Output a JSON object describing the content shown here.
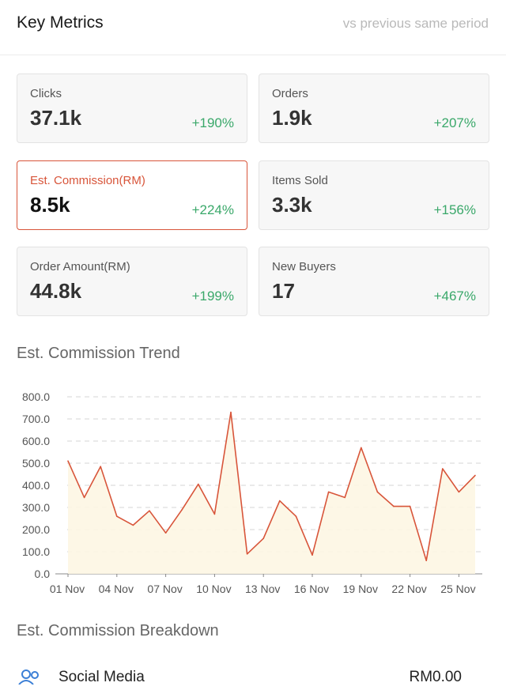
{
  "header": {
    "title": "Key Metrics",
    "subtitle": "vs previous same period"
  },
  "metrics": [
    {
      "label": "Clicks",
      "value": "37.1k",
      "change": "+190%"
    },
    {
      "label": "Orders",
      "value": "1.9k",
      "change": "+207%"
    },
    {
      "label": "Est. Commission(RM)",
      "value": "8.5k",
      "change": "+224%",
      "selected": true
    },
    {
      "label": "Items Sold",
      "value": "3.3k",
      "change": "+156%"
    },
    {
      "label": "Order Amount(RM)",
      "value": "44.8k",
      "change": "+199%"
    },
    {
      "label": "New Buyers",
      "value": "17",
      "change": "+467%"
    }
  ],
  "colors": {
    "accent": "#d8553a",
    "positive": "#3aa86a",
    "fill": "#fdf6e3"
  },
  "trend": {
    "title": "Est. Commission Trend"
  },
  "chart_data": {
    "type": "line",
    "xlabel": "",
    "ylabel": "",
    "ylim": [
      0,
      800
    ],
    "yticks": [
      "0.0",
      "100.0",
      "200.0",
      "300.0",
      "400.0",
      "500.0",
      "600.0",
      "700.0",
      "800.0"
    ],
    "xticks": [
      "01 Nov",
      "04 Nov",
      "07 Nov",
      "10 Nov",
      "13 Nov",
      "16 Nov",
      "19 Nov",
      "22 Nov",
      "25 Nov"
    ],
    "grid": true,
    "series": [
      {
        "values": [
          510,
          345,
          485,
          260,
          220,
          285,
          185,
          290,
          405,
          270,
          730,
          90,
          160,
          330,
          260,
          85,
          370,
          345,
          570,
          370,
          305,
          305,
          60,
          475,
          370,
          445
        ]
      }
    ]
  },
  "breakdown": {
    "title": "Est. Commission Breakdown",
    "items": [
      {
        "label": "Social Media",
        "value": "RM0.00",
        "icon": "people-icon"
      }
    ]
  }
}
